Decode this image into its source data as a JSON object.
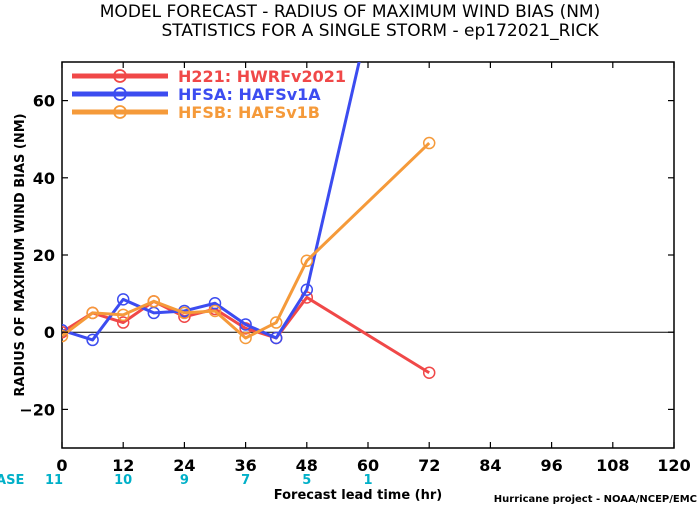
{
  "chart_data": {
    "type": "line",
    "title_line1": "MODEL FORECAST - RADIUS OF MAXIMUM WIND BIAS (NM)",
    "title_line2": "STATISTICS FOR A SINGLE STORM - ep172021_RICK",
    "xlabel": "Forecast lead time (hr)",
    "ylabel": "RADIUS OF MAXIMUM WIND BIAS (NM)",
    "xlim": [
      0,
      120
    ],
    "ylim": [
      -30,
      70
    ],
    "x_ticks": [
      0,
      12,
      24,
      36,
      48,
      60,
      72,
      84,
      96,
      108,
      120
    ],
    "y_ticks": [
      -20,
      0,
      20,
      40,
      60
    ],
    "zero_line": true,
    "grid": false,
    "legend_position": "top-left",
    "case_label": "#CASE",
    "cases": [
      {
        "x": 0,
        "n": "11"
      },
      {
        "x": 12,
        "n": "10"
      },
      {
        "x": 24,
        "n": "9"
      },
      {
        "x": 36,
        "n": "7"
      },
      {
        "x": 48,
        "n": "5"
      },
      {
        "x": 60,
        "n": "1"
      }
    ],
    "credit": "Hurricane project - NOAA/NCEP/EMC",
    "series": [
      {
        "name": "H221: HWRFv2021",
        "color": "#f04848",
        "points": [
          [
            0,
            0
          ],
          [
            6,
            5
          ],
          [
            12,
            2.5
          ],
          [
            18,
            8
          ],
          [
            24,
            4
          ],
          [
            30,
            6
          ],
          [
            36,
            1
          ],
          [
            42,
            -1.5
          ],
          [
            48,
            9
          ],
          [
            72,
            -10.5
          ]
        ]
      },
      {
        "name": "HFSA: HAFSv1A",
        "color": "#3c4cf0",
        "points": [
          [
            0,
            0.5
          ],
          [
            6,
            -2
          ],
          [
            12,
            8.5
          ],
          [
            18,
            5
          ],
          [
            24,
            5.5
          ],
          [
            30,
            7.5
          ],
          [
            36,
            2
          ],
          [
            42,
            -1.5
          ],
          [
            48,
            11
          ],
          [
            60,
            80
          ]
        ]
      },
      {
        "name": "HFSB: HAFSv1B",
        "color": "#f59a3a",
        "points": [
          [
            0,
            -1
          ],
          [
            6,
            5
          ],
          [
            12,
            4.5
          ],
          [
            18,
            8
          ],
          [
            24,
            5
          ],
          [
            30,
            5.5
          ],
          [
            36,
            -1.5
          ],
          [
            42,
            2.5
          ],
          [
            48,
            18.5
          ],
          [
            72,
            49
          ]
        ]
      }
    ]
  }
}
